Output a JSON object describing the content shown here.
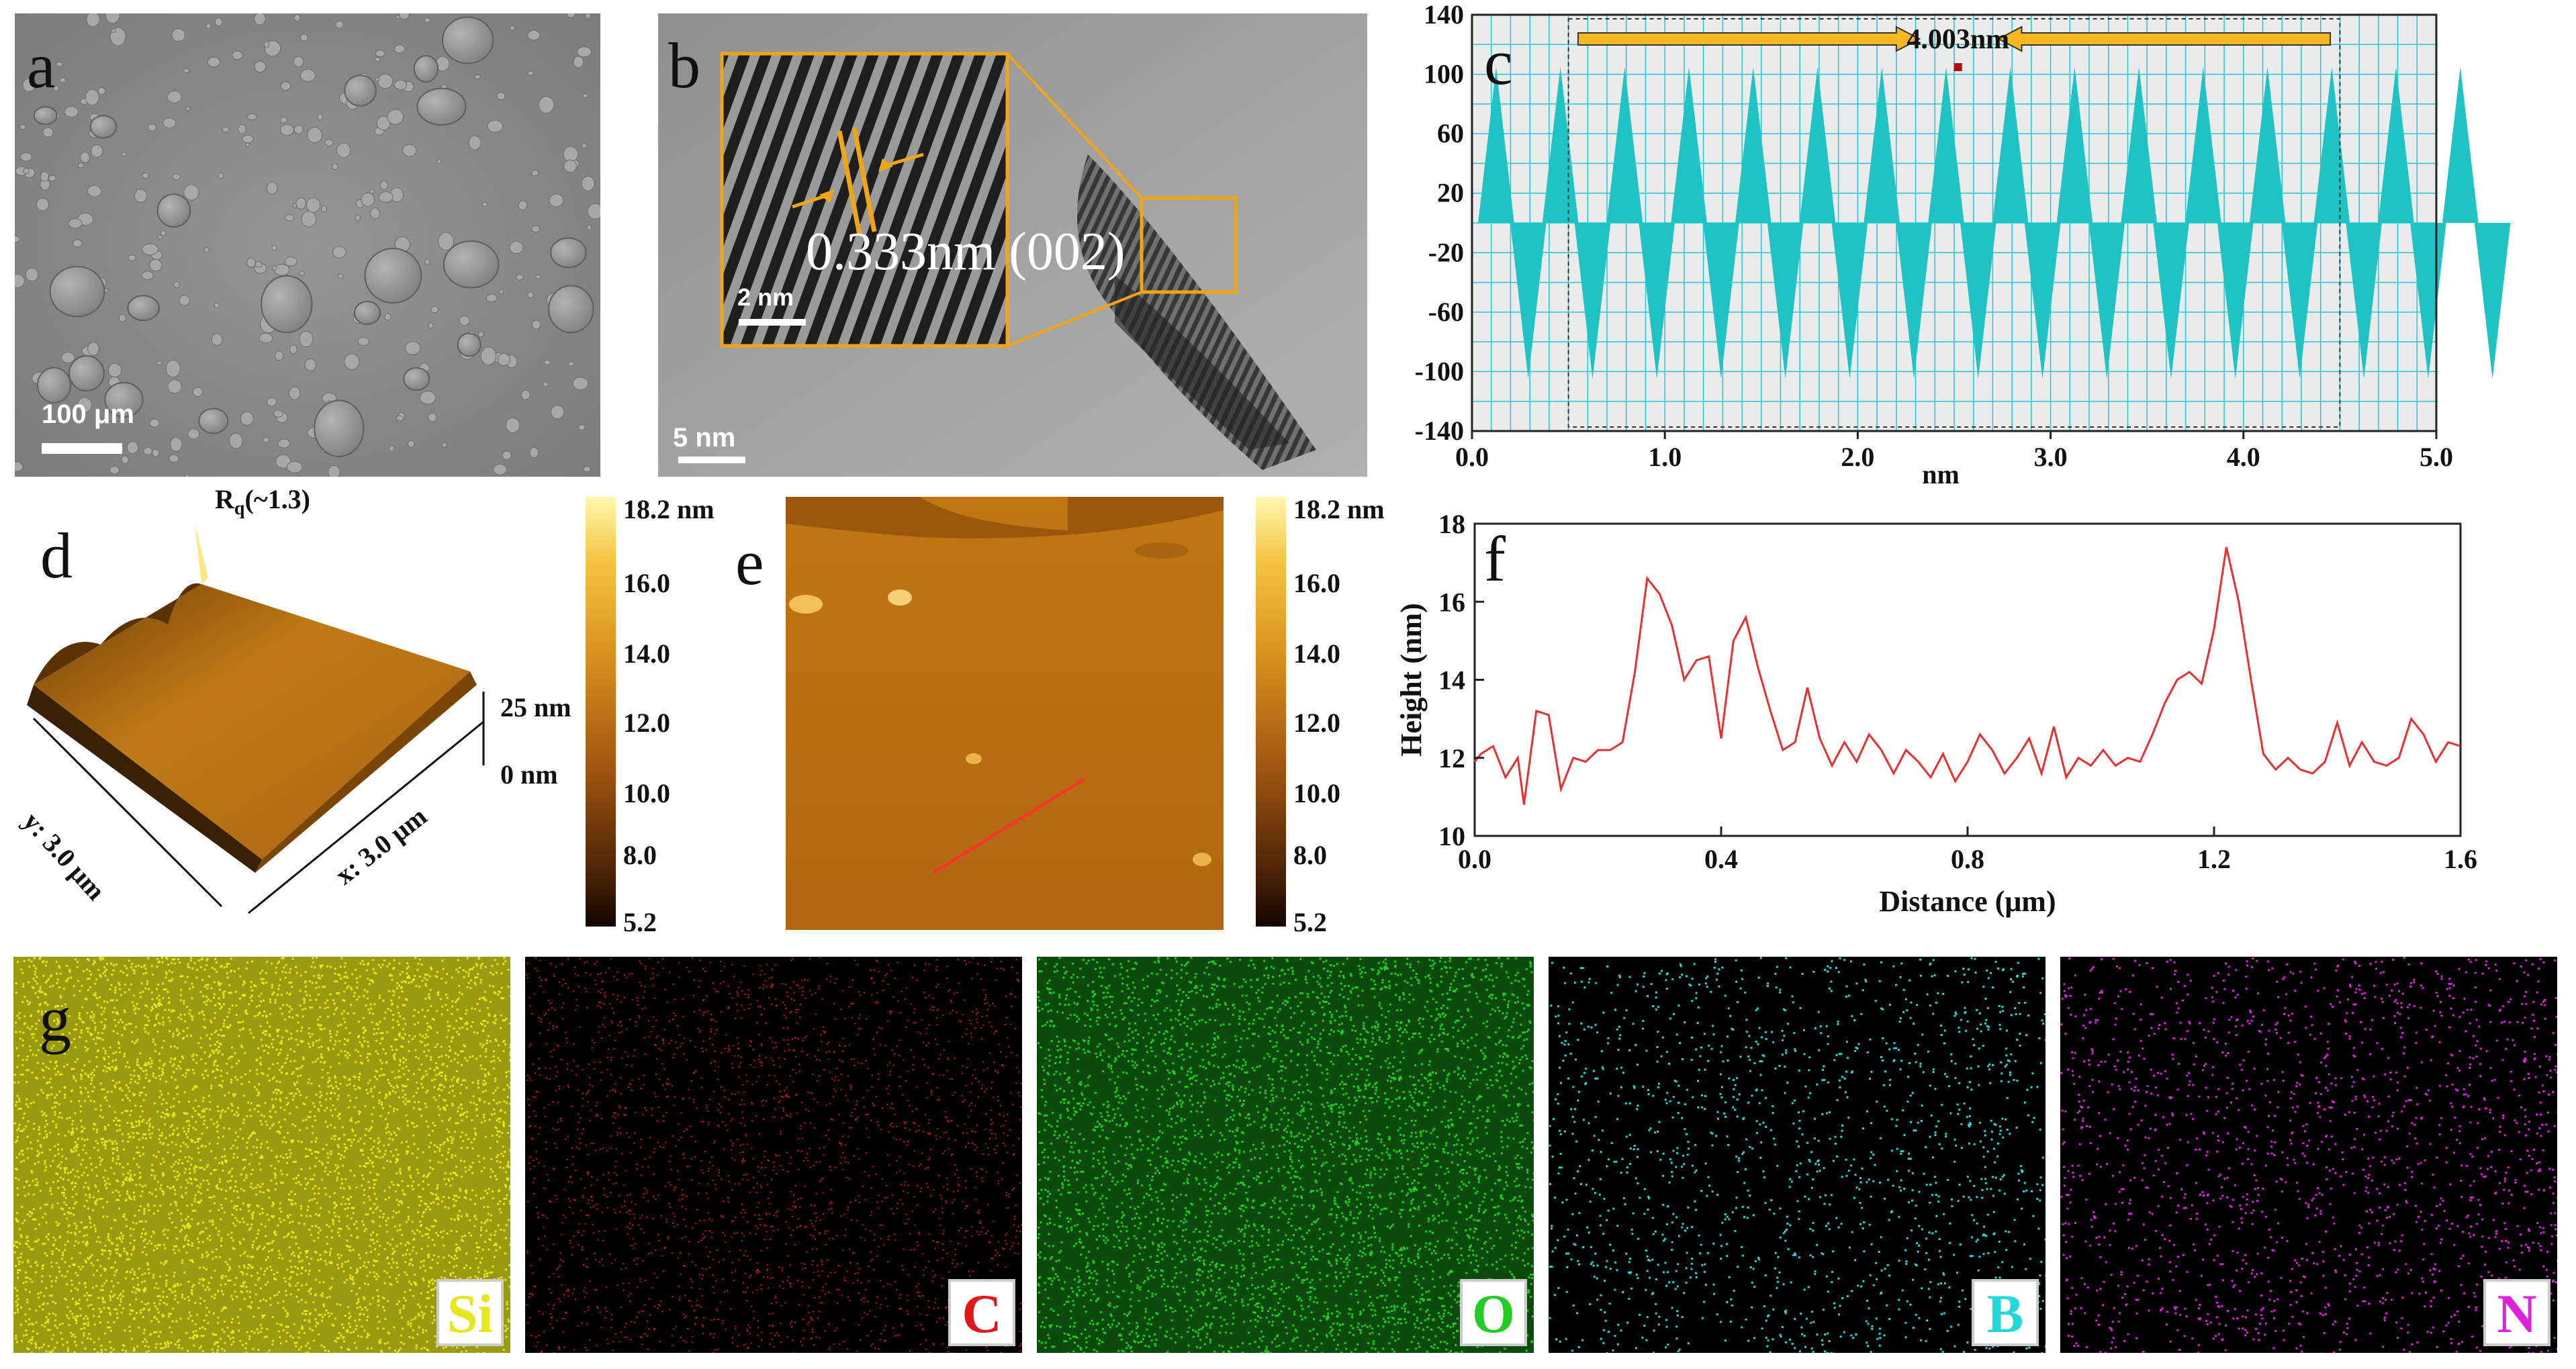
{
  "panels": {
    "a": {
      "label": "a",
      "scale_bar": "100 μm"
    },
    "b": {
      "label": "b",
      "scale_bar": "5 nm",
      "inset_scale_bar": "2 nm",
      "lattice_annotation": "0.333nm (002)"
    },
    "c": {
      "label": "c",
      "annotation": "4.003nm"
    },
    "d": {
      "label": "d",
      "roughness": "R",
      "roughness_sub": "q",
      "roughness_value": "(~1.3)",
      "z_high": "25 nm",
      "z_low": "0 nm",
      "x_axis": "x: 3.0 μm",
      "y_axis": "y: 3.0 μm"
    },
    "e": {
      "label": "e"
    },
    "f": {
      "label": "f"
    },
    "g": {
      "label": "g"
    }
  },
  "colorbar": {
    "ticks": [
      "18.2 nm",
      "16.0",
      "14.0",
      "12.0",
      "10.0",
      "8.0",
      "5.2"
    ]
  },
  "eds_maps": [
    {
      "element": "Si",
      "color": "#e6e61e"
    },
    {
      "element": "C",
      "color": "#e01818"
    },
    {
      "element": "O",
      "color": "#22cc22"
    },
    {
      "element": "B",
      "color": "#22d8d8"
    },
    {
      "element": "N",
      "color": "#dd22dd"
    }
  ],
  "chart_data": [
    {
      "type": "bar",
      "panel": "c",
      "title": "",
      "xlabel": "nm",
      "ylabel": "",
      "xlim": [
        0.0,
        5.0
      ],
      "ylim": [
        -140,
        140
      ],
      "x_ticks": [
        "0.0",
        "1.0",
        "2.0",
        "3.0",
        "4.0",
        "5.0"
      ],
      "y_ticks": [
        "140",
        "100",
        "60",
        "20",
        "-20",
        "-60",
        "-100",
        "-140"
      ],
      "fringe_count": 16,
      "fringe_period_nm": 0.3333,
      "peak_amplitude": 105,
      "trough_amplitude": -105,
      "annotation": "4.003nm",
      "color": "#20c3c3"
    },
    {
      "type": "line",
      "panel": "f",
      "title": "",
      "xlabel": "Distance (μm)",
      "ylabel": "Height (nm)",
      "xlim": [
        0.0,
        1.6
      ],
      "ylim": [
        10,
        18
      ],
      "x_ticks": [
        "0.0",
        "0.4",
        "0.8",
        "1.2",
        "1.6"
      ],
      "y_ticks": [
        "18",
        "16",
        "14",
        "12",
        "10"
      ],
      "color": "#e83030",
      "x": [
        0.0,
        0.01,
        0.03,
        0.05,
        0.07,
        0.08,
        0.1,
        0.12,
        0.14,
        0.16,
        0.18,
        0.2,
        0.22,
        0.24,
        0.26,
        0.28,
        0.3,
        0.32,
        0.34,
        0.36,
        0.38,
        0.4,
        0.42,
        0.44,
        0.46,
        0.48,
        0.5,
        0.52,
        0.54,
        0.56,
        0.58,
        0.6,
        0.62,
        0.64,
        0.66,
        0.68,
        0.7,
        0.72,
        0.74,
        0.76,
        0.78,
        0.8,
        0.82,
        0.84,
        0.86,
        0.88,
        0.9,
        0.92,
        0.94,
        0.96,
        0.98,
        1.0,
        1.02,
        1.04,
        1.06,
        1.08,
        1.1,
        1.12,
        1.14,
        1.16,
        1.18,
        1.2,
        1.22,
        1.24,
        1.26,
        1.28,
        1.3,
        1.32,
        1.34,
        1.36,
        1.38,
        1.4,
        1.42,
        1.44,
        1.46,
        1.48,
        1.5,
        1.52,
        1.54,
        1.56,
        1.58,
        1.6
      ],
      "values": [
        11.9,
        12.1,
        12.3,
        11.5,
        12.0,
        10.8,
        13.2,
        13.1,
        11.2,
        12.0,
        11.9,
        12.2,
        12.2,
        12.4,
        14.2,
        16.6,
        16.2,
        15.4,
        14.0,
        14.5,
        14.6,
        12.5,
        15.0,
        15.6,
        14.3,
        13.2,
        12.2,
        12.4,
        13.8,
        12.5,
        11.8,
        12.4,
        11.9,
        12.6,
        12.2,
        11.6,
        12.2,
        11.9,
        11.5,
        12.1,
        11.4,
        11.9,
        12.6,
        12.2,
        11.6,
        12.0,
        12.5,
        11.6,
        12.8,
        11.5,
        12.0,
        11.8,
        12.2,
        11.8,
        12.0,
        11.9,
        12.6,
        13.4,
        14.0,
        14.2,
        13.9,
        15.3,
        17.4,
        16.0,
        14.0,
        12.1,
        11.7,
        12.0,
        11.7,
        11.6,
        11.9,
        12.9,
        11.8,
        12.4,
        11.9,
        11.8,
        12.0,
        13.0,
        12.6,
        11.9,
        12.4,
        12.3
      ]
    }
  ]
}
